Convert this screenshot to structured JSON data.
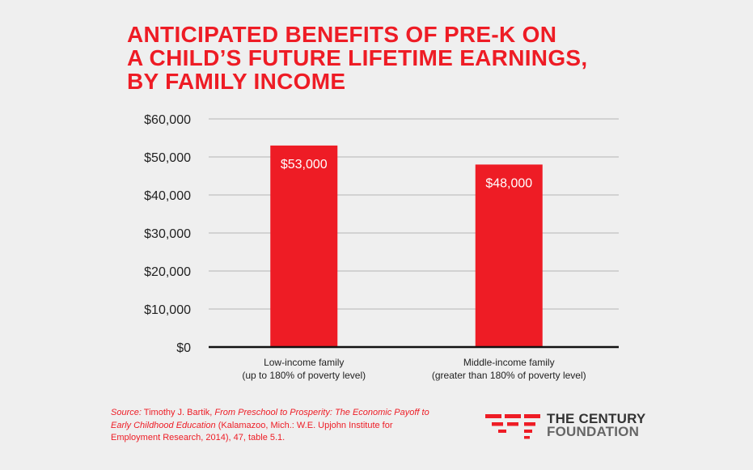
{
  "title_lines": [
    "ANTICIPATED BENEFITS OF PRE-K ON",
    "A CHILD’S FUTURE LIFETIME EARNINGS,",
    "BY FAMILY INCOME"
  ],
  "chart_data": {
    "type": "bar",
    "title": "ANTICIPATED BENEFITS OF PRE-K ON A CHILD’S FUTURE LIFETIME EARNINGS, BY FAMILY INCOME",
    "categories": [
      "Low-income family",
      "Middle-income family"
    ],
    "category_sublabels": [
      "(up to 180% of poverty level)",
      "(greater than 180% of poverty level)"
    ],
    "values": [
      53000,
      48000
    ],
    "data_labels": [
      "$53,000",
      "$48,000"
    ],
    "ylim": [
      0,
      60000
    ],
    "yticks": [
      0,
      10000,
      20000,
      30000,
      40000,
      50000,
      60000
    ],
    "ytick_labels": [
      "$0",
      "$10,000",
      "$20,000",
      "$30,000",
      "$40,000",
      "$50,000",
      "$60,000"
    ],
    "xlabel": "",
    "ylabel": "",
    "grid": true,
    "bar_color": "#ee1c25"
  },
  "source": {
    "prefix": "Source:",
    "author": " Timothy J. Bartik, ",
    "book": "From Preschool to Prosperity: The Economic Payoff to Early Childhood Education",
    "rest": " (Kalamazoo, Mich.: W.E. Upjohn Institute for Employment Research, 2014), 47, table 5.1."
  },
  "logo": {
    "line1": "THE CENTURY",
    "line2": "FOUNDATION",
    "icon": "century-foundation-logo-icon"
  },
  "colors": {
    "accent": "#ee1c25",
    "background": "#efefef",
    "grid": "#b5b5b5",
    "axis": "#111111",
    "text": "#222222"
  }
}
